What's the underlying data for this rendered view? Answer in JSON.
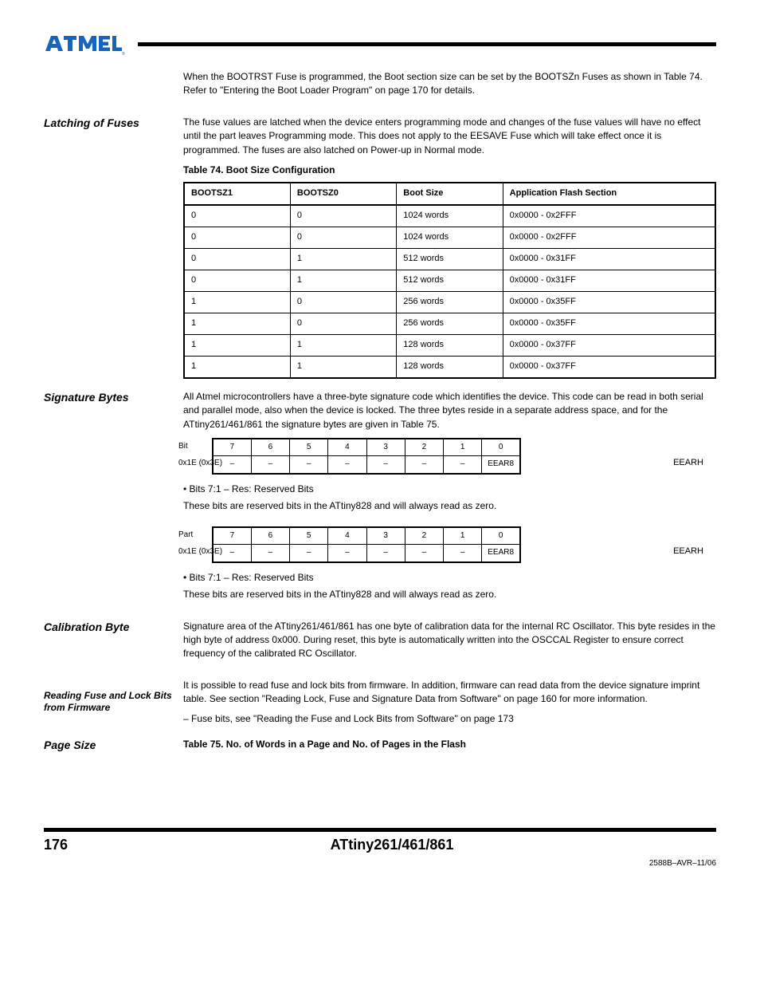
{
  "header": {
    "logo_alt": "Atmel logo"
  },
  "intro": "When the BOOTRST Fuse is programmed, the Boot section size can be set by the BOOTSZn Fuses as shown in Table 74. Refer to \"Entering the Boot Loader Program\" on page 170 for details.",
  "latching": {
    "title": "Latching of Fuses",
    "p1": "The fuse values are latched when the device enters programming mode and changes of the fuse values will have no effect until the part leaves Programming mode. This does not apply to the EESAVE Fuse which will take effect once it is programmed. The fuses are also latched on Power-up in Normal mode.",
    "table_caption": "Table 74.  Boot Size Configuration",
    "cols": [
      "BOOTSZ1",
      "BOOTSZ0",
      "Boot Size",
      "Application Flash Section"
    ],
    "rows": [
      [
        "0",
        "0",
        "1024 words",
        "0x0000 - 0x2FFF"
      ],
      [
        "0",
        "0",
        "1024 words",
        "0x0000 - 0x2FFF"
      ],
      [
        "0",
        "1",
        "512 words",
        "0x0000 - 0x31FF"
      ],
      [
        "0",
        "1",
        "512 words",
        "0x0000 - 0x31FF"
      ],
      [
        "1",
        "0",
        "256 words",
        "0x0000 - 0x35FF"
      ],
      [
        "1",
        "0",
        "256 words",
        "0x0000 - 0x35FF"
      ],
      [
        "1",
        "1",
        "128 words",
        "0x0000 - 0x37FF"
      ],
      [
        "1",
        "1",
        "128 words",
        "0x0000 - 0x37FF"
      ]
    ]
  },
  "sigbytes": {
    "title": "Signature Bytes",
    "p1": "All Atmel microcontrollers have a three-byte signature code which identifies the device. This code can be read in both serial and parallel mode, also when the device is locked. The three bytes reside in a separate address space, and for the ATtiny261/461/861 the signature bytes are given in Table 75.",
    "regA": {
      "label_bit": "Bit",
      "left0": "0x1E (0x3E)",
      "right": "EEARH",
      "hdr": [
        "7",
        "6",
        "5",
        "4",
        "3",
        "2",
        "1",
        "0"
      ],
      "row": [
        "–",
        "–",
        "–",
        "–",
        "–",
        "–",
        "–",
        "EEAR8"
      ]
    },
    "regB": {
      "part": "Part",
      "left0": "0x1E (0x3E)",
      "right": "EEARH",
      "hdr": [
        "7",
        "6",
        "5",
        "4",
        "3",
        "2",
        "1",
        "0"
      ],
      "row": [
        "–",
        "–",
        "–",
        "–",
        "–",
        "–",
        "–",
        "EEAR8"
      ]
    },
    "bits_heading": "• Bits 7:1 – Res: Reserved Bits",
    "bits_p": "These bits are reserved bits in the ATtiny828 and will always read as zero."
  },
  "calbyte": {
    "title": "Calibration Byte",
    "p": "Signature area of the ATtiny261/461/861 has one byte of calibration data for the internal RC Oscillator. This byte resides in the high byte of address 0x000. During reset, this byte is automatically written into the OSCCAL Register to ensure correct frequency of the calibrated RC Oscillator."
  },
  "readcal": {
    "title": "Reading Fuse and Lock Bits from Firmware",
    "p": "It is possible to read fuse and lock bits from firmware. In addition, firmware can read data from the device signature imprint table. See section \"Reading Lock, Fuse and Signature Data from Software\" on page 160 for more information.",
    "links": [
      "Fuse bits, see \"Reading the Fuse and Lock Bits from Software\" on page 173"
    ]
  },
  "pageprog": {
    "title": "Page Size",
    "caption": "Table 75.  No. of Words in a Page and No. of Pages in the Flash"
  },
  "footer": {
    "page": "176",
    "doc": "ATtiny261/461/861",
    "rev": "2588B–AVR–11/06"
  }
}
